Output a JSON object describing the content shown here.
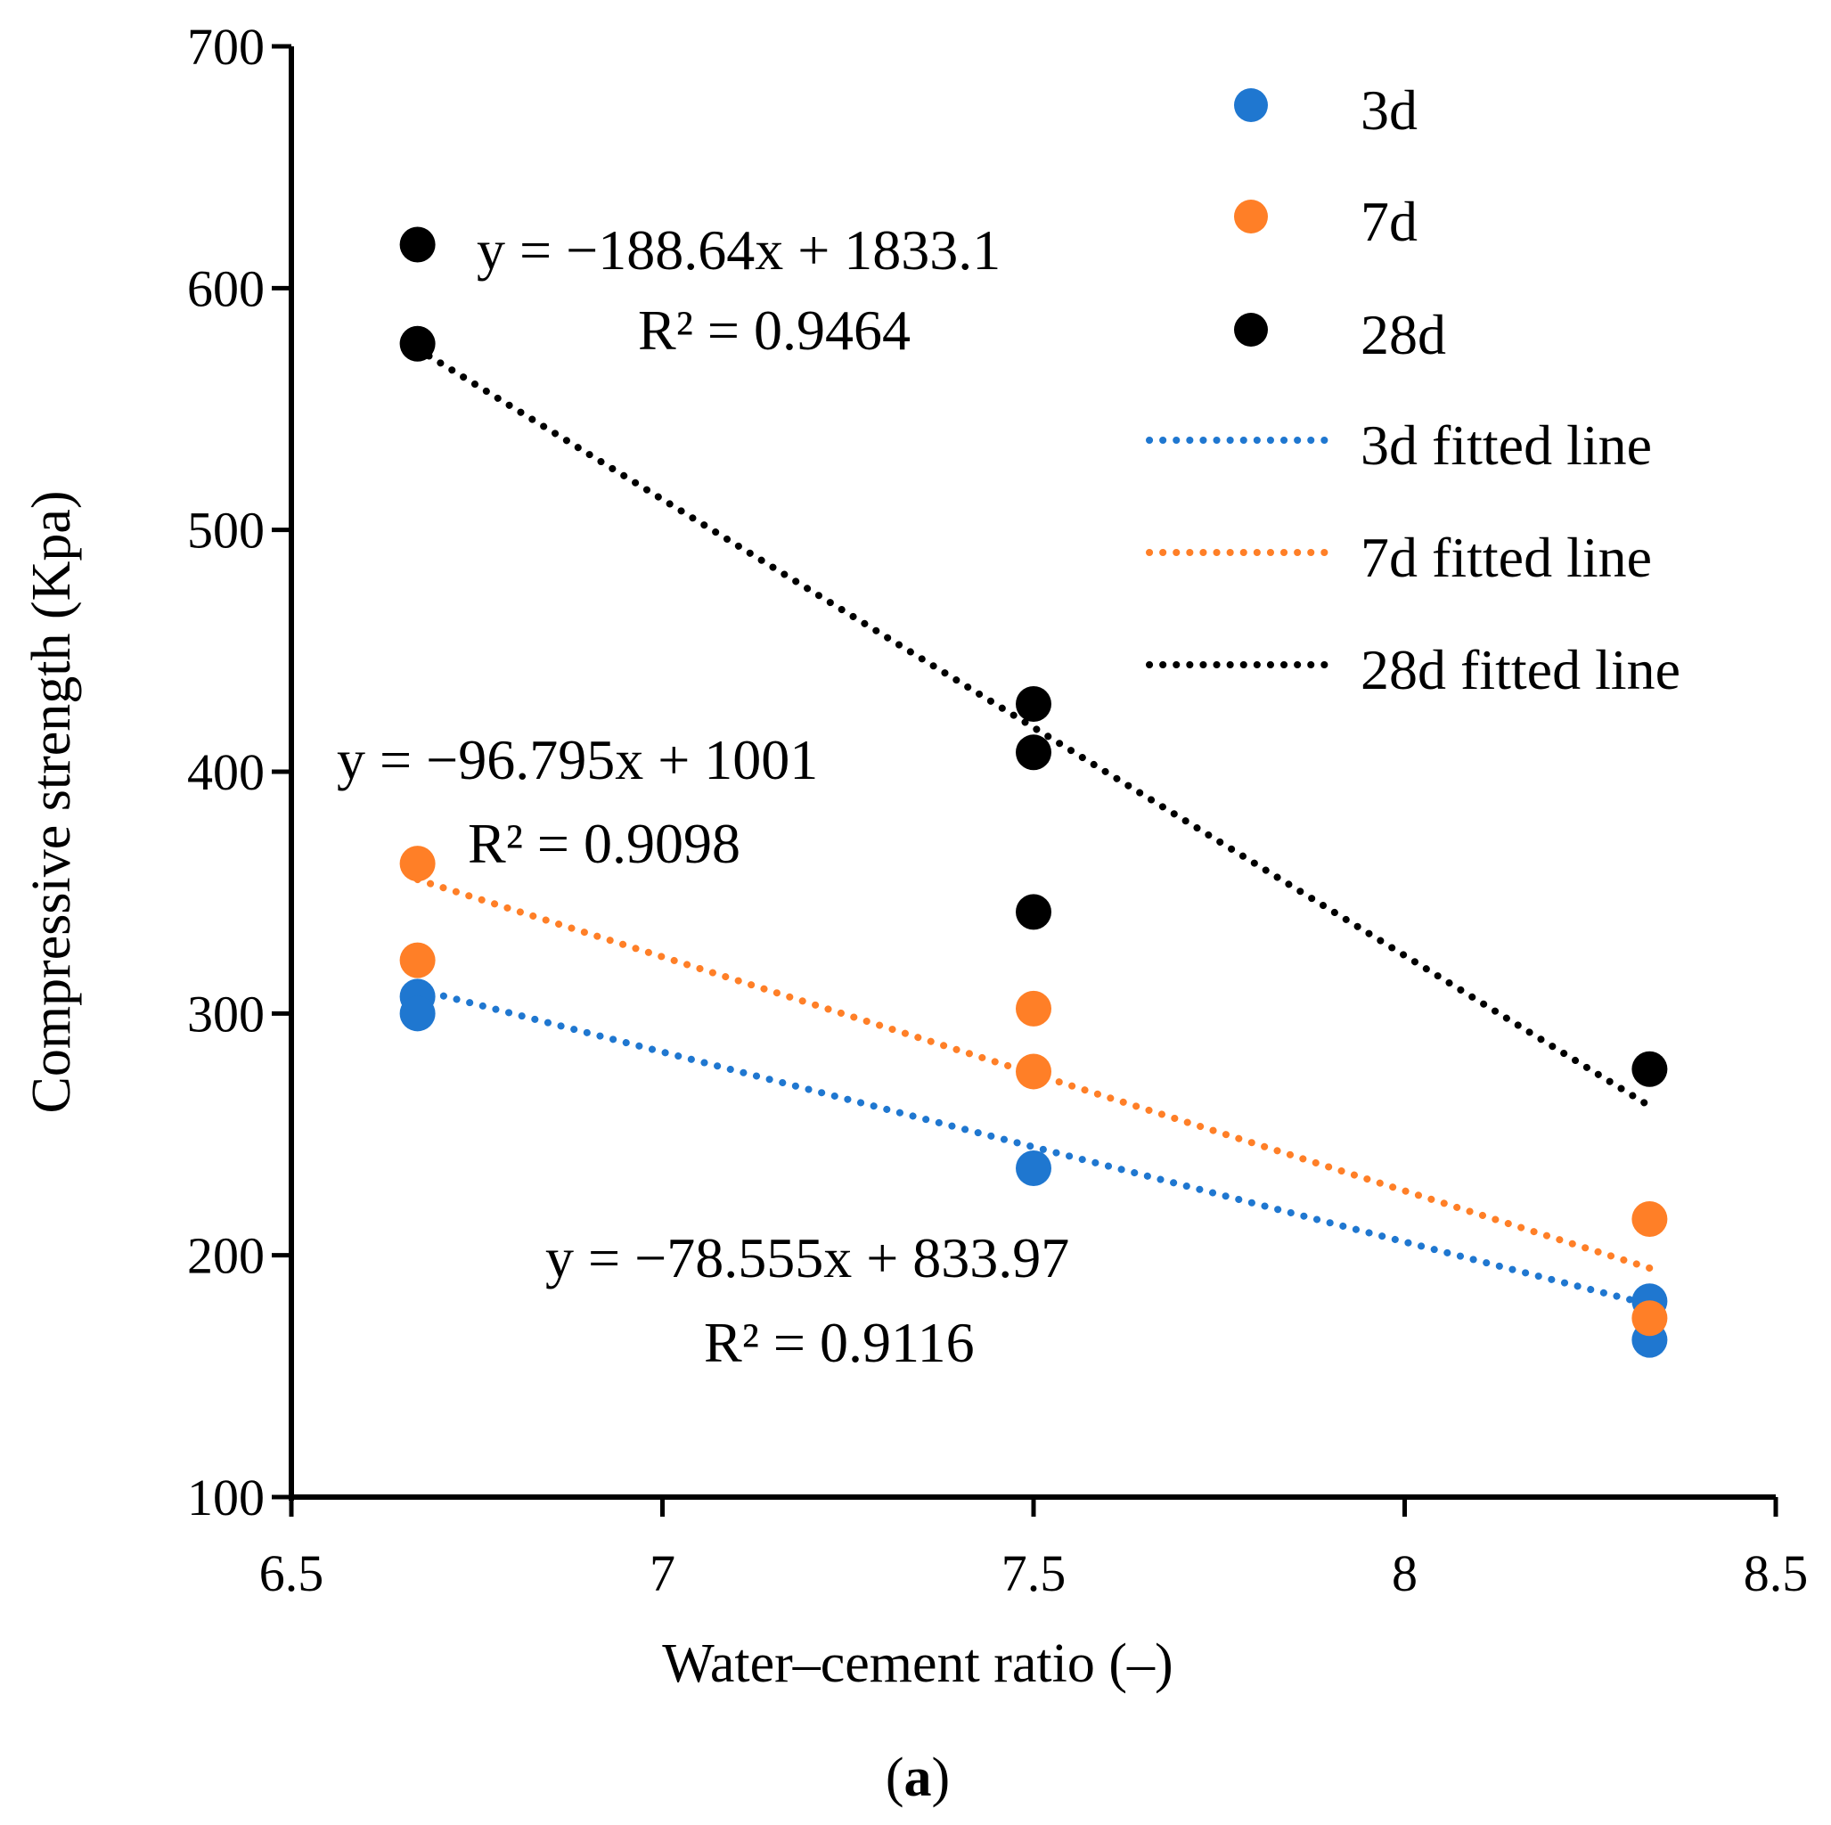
{
  "chart_data": {
    "type": "scatter",
    "xlabel": "Water–cement ratio (–)",
    "ylabel": "Compressive strength (Kpa)",
    "xlim": [
      6.5,
      8.5
    ],
    "ylim": [
      100,
      700
    ],
    "xticks": [
      "6.5",
      "7",
      "7.5",
      "8",
      "8.5"
    ],
    "yticks": [
      "100",
      "200",
      "300",
      "400",
      "500",
      "600",
      "700"
    ],
    "grid": false,
    "legend_position": "top-right",
    "caption_prefix": "(",
    "caption_letter": "a",
    "caption_suffix": ")",
    "series": [
      {
        "name": "3d",
        "color": "#1f77d0",
        "points": [
          [
            6.67,
            307
          ],
          [
            6.67,
            300
          ],
          [
            7.5,
            236
          ],
          [
            8.33,
            181
          ],
          [
            8.33,
            165
          ]
        ]
      },
      {
        "name": "7d",
        "color": "#ff7f27",
        "points": [
          [
            6.67,
            362
          ],
          [
            6.67,
            322
          ],
          [
            7.5,
            302
          ],
          [
            7.5,
            276
          ],
          [
            8.33,
            215
          ],
          [
            8.33,
            174
          ]
        ]
      },
      {
        "name": "28d",
        "color": "#000000",
        "points": [
          [
            6.67,
            618
          ],
          [
            6.67,
            577
          ],
          [
            7.5,
            428
          ],
          [
            7.5,
            408
          ],
          [
            7.5,
            342
          ],
          [
            8.33,
            277
          ]
        ]
      }
    ],
    "fitted_lines": [
      {
        "name": "3d fitted line",
        "color": "#1f77d0",
        "slope": -78.555,
        "intercept": 833.97,
        "x_range": [
          6.67,
          8.33
        ],
        "equation": "y = −78.555x + 833.97",
        "r2": "R² = 0.9116"
      },
      {
        "name": "7d fitted line",
        "color": "#ff7f27",
        "slope": -96.795,
        "intercept": 1001,
        "x_range": [
          6.67,
          8.33
        ],
        "equation": "y = −96.795x + 1001",
        "r2": "R² = 0.9098"
      },
      {
        "name": "28d fitted line",
        "color": "#000000",
        "slope": -188.64,
        "intercept": 1833.1,
        "x_range": [
          6.67,
          8.33
        ],
        "equation": "y = −188.64x + 1833.1",
        "r2": "R² = 0.9464"
      }
    ]
  }
}
